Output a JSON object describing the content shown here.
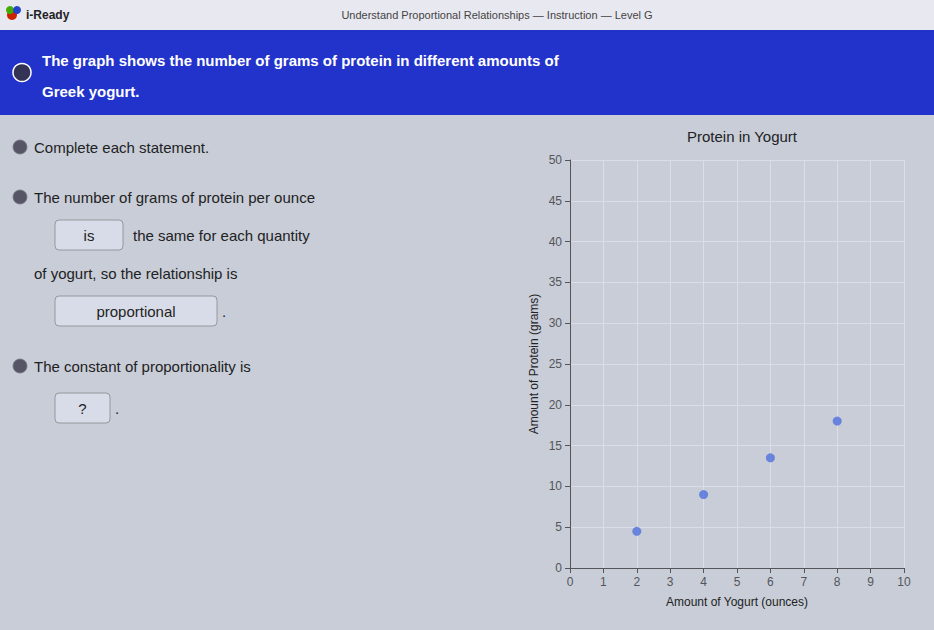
{
  "chart_data": {
    "type": "scatter",
    "title": "Protein in Yogurt",
    "xlabel": "Amount of Yogurt (ounces)",
    "ylabel": "Amount of Protein (grams)",
    "x": [
      2,
      4,
      6,
      8
    ],
    "values": [
      4.5,
      9,
      13.5,
      18
    ],
    "xlim": [
      0,
      10
    ],
    "ylim": [
      0,
      50
    ],
    "xticks": [
      0,
      1,
      2,
      3,
      4,
      5,
      6,
      7,
      8,
      9,
      10
    ],
    "yticks": [
      0,
      5,
      10,
      15,
      20,
      25,
      30,
      35,
      40,
      45,
      50
    ],
    "grid": true,
    "annotations": [
      "i-Ready",
      "Understand Proportional Relationships — Instruction — Level G",
      "The graph shows the number of grams of protein in different amounts of",
      "Greek yogurt.",
      "Complete each statement.",
      "The number of grams of protein per ounce",
      "is",
      "the same for each quantity",
      "of yogurt, so the relationship is",
      "proportional",
      ".",
      "The constant of proportionality is",
      "?",
      "."
    ]
  }
}
